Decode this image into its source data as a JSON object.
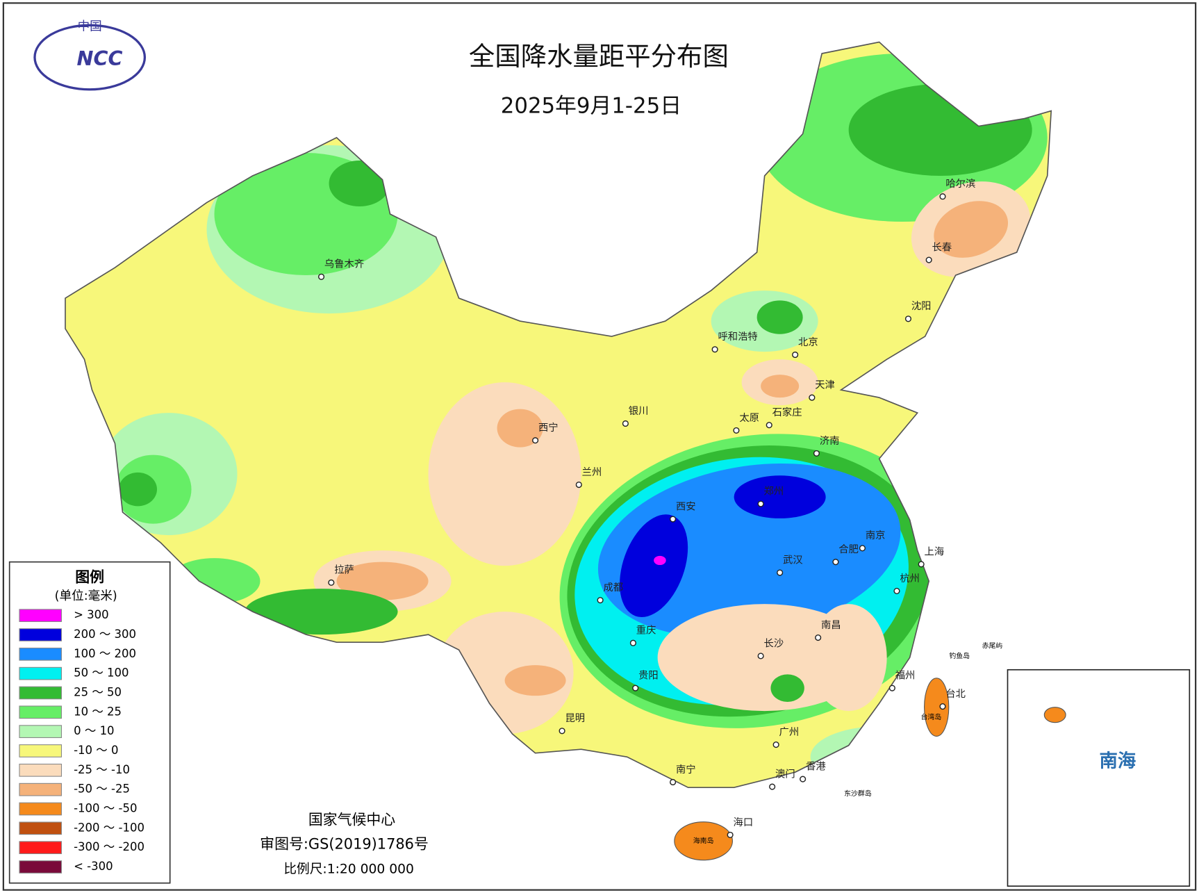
{
  "header": {
    "title": "全国降水量距平分布图",
    "subtitle": "2025年9月1-25日",
    "logo_top": "中国",
    "logo_text": "NCC"
  },
  "legend": {
    "title": "图例",
    "unit": "(单位:毫米)",
    "items": [
      {
        "label": "> 300",
        "color": "#ff00ff"
      },
      {
        "label": "200 ～ 300",
        "color": "#0000dd"
      },
      {
        "label": "100 ～ 200",
        "color": "#1a8cff"
      },
      {
        "label": "50 ～ 100",
        "color": "#00f0f0"
      },
      {
        "label": "25 ～ 50",
        "color": "#33bb33"
      },
      {
        "label": "10 ～ 25",
        "color": "#66ee66"
      },
      {
        "label": "0 ～ 10",
        "color": "#b3f7b3"
      },
      {
        "label": "-10 ～ 0",
        "color": "#f7f77a"
      },
      {
        "label": "-25 ～ -10",
        "color": "#fbdcbc"
      },
      {
        "label": "-50 ～ -25",
        "color": "#f5b27a"
      },
      {
        "label": "-100 ～ -50",
        "color": "#f58a1c"
      },
      {
        "label": "-200 ～ -100",
        "color": "#c05010"
      },
      {
        "label": "-300 ～ -200",
        "color": "#ff1a1a"
      },
      {
        "label": "< -300",
        "color": "#7a0a3a"
      }
    ]
  },
  "cities": [
    "乌鲁木齐",
    "呼和浩特",
    "北京",
    "天津",
    "石家庄",
    "太原",
    "济南",
    "银川",
    "西宁",
    "兰州",
    "西安",
    "郑州",
    "南京",
    "合肥",
    "上海",
    "武汉",
    "杭州",
    "成都",
    "重庆",
    "长沙",
    "南昌",
    "贵阳",
    "福州",
    "昆明",
    "拉萨",
    "南宁",
    "广州",
    "香港",
    "澳门",
    "海口",
    "台北",
    "哈尔滨",
    "长春",
    "沈阳"
  ],
  "islands": [
    "海南岛",
    "台湾岛",
    "钓鱼岛",
    "赤尾屿",
    "东沙群岛"
  ],
  "inset": {
    "label": "南海"
  },
  "footer": {
    "org": "国家气候中心",
    "approval": "审图号:GS(2019)1786号",
    "scale": "比例尺:1:20 000 000"
  }
}
